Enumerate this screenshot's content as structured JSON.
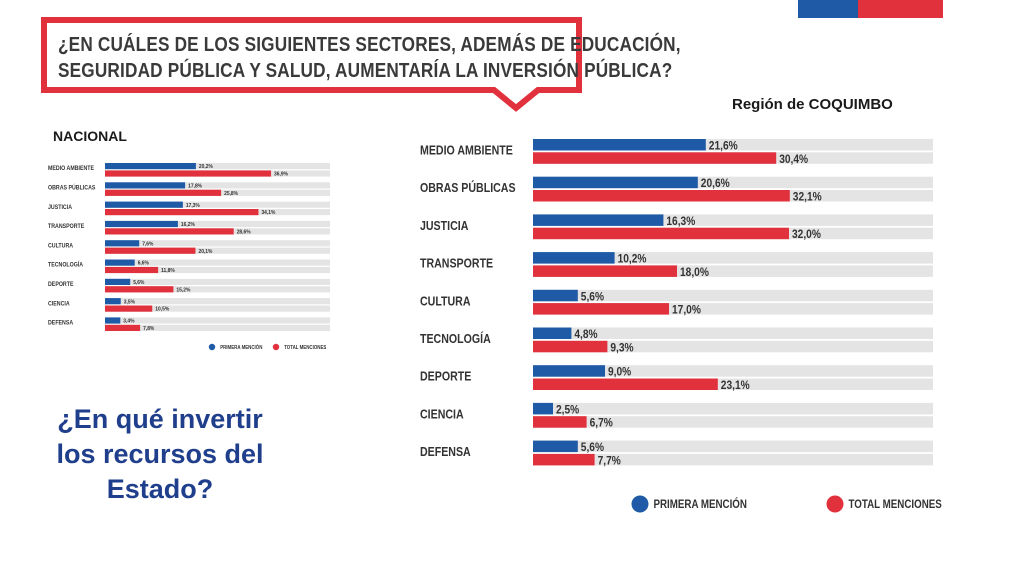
{
  "question": {
    "line1": "¿EN CUÁLES DE LOS SIGUIENTES SECTORES, ADEMÁS DE EDUCACIÓN,",
    "line2": "SEGURIDAD PÚBLICA Y SALUD, AUMENTARÍA LA INVERSIÓN PÚBLICA?"
  },
  "labels": {
    "nacional": "NACIONAL",
    "region": "Región de COQUIMBO",
    "big_question": "¿En qué invertir los recursos del Estado?"
  },
  "colors": {
    "primera": "#1f5aa6",
    "total": "#e0313d",
    "track": "#e4e4e4",
    "bubble_border": "#e0313d",
    "title_blue": "#1f3e8c"
  },
  "chart_data": [
    {
      "type": "bar",
      "name": "NACIONAL",
      "orientation": "horizontal",
      "categories": [
        "MEDIO AMBIENTE",
        "OBRAS PÚBLICAS",
        "JUSTICIA",
        "TRANSPORTE",
        "CULTURA",
        "TECNOLOGÍA",
        "DEPORTE",
        "CIENCIA",
        "DEFENSA"
      ],
      "series": [
        {
          "name": "PRIMERA MENCIÓN",
          "values": [
            20.2,
            17.8,
            17.3,
            16.2,
            7.6,
            6.6,
            5.6,
            3.5,
            3.4
          ],
          "labels": [
            "20,2%",
            "17,8%",
            "17,3%",
            "16,2%",
            "7,6%",
            "6,6%",
            "5,6%",
            "3,5%",
            "3,4%"
          ]
        },
        {
          "name": "TOTAL MENCIONES",
          "values": [
            36.9,
            25.8,
            34.1,
            28.6,
            20.1,
            11.8,
            15.2,
            10.5,
            7.8
          ],
          "labels": [
            "36,9%",
            "25,8%",
            "34,1%",
            "28,6%",
            "20,1%",
            "11,8%",
            "15,2%",
            "10,5%",
            "7,8%"
          ]
        }
      ],
      "xlim": [
        0,
        50
      ],
      "legend": "bottom-right"
    },
    {
      "type": "bar",
      "name": "Región de COQUIMBO",
      "orientation": "horizontal",
      "categories": [
        "MEDIO AMBIENTE",
        "OBRAS PÚBLICAS",
        "JUSTICIA",
        "TRANSPORTE",
        "CULTURA",
        "TECNOLOGÍA",
        "DEPORTE",
        "CIENCIA",
        "DEFENSA"
      ],
      "series": [
        {
          "name": "PRIMERA MENCIÓN",
          "values": [
            21.6,
            20.6,
            16.3,
            10.2,
            5.6,
            4.8,
            9.0,
            2.5,
            5.6
          ],
          "labels": [
            "21,6%",
            "20,6%",
            "16,3%",
            "10,2%",
            "5,6%",
            "4,8%",
            "9,0%",
            "2,5%",
            "5,6%"
          ]
        },
        {
          "name": "TOTAL MENCIONES",
          "values": [
            30.4,
            32.1,
            32.0,
            18.0,
            17.0,
            9.3,
            23.1,
            6.7,
            7.7
          ],
          "labels": [
            "30,4%",
            "32,1%",
            "32,0%",
            "18,0%",
            "17,0%",
            "9,3%",
            "23,1%",
            "6,7%",
            "7,7%"
          ]
        }
      ],
      "xlim": [
        0,
        50
      ],
      "legend": "bottom"
    }
  ]
}
